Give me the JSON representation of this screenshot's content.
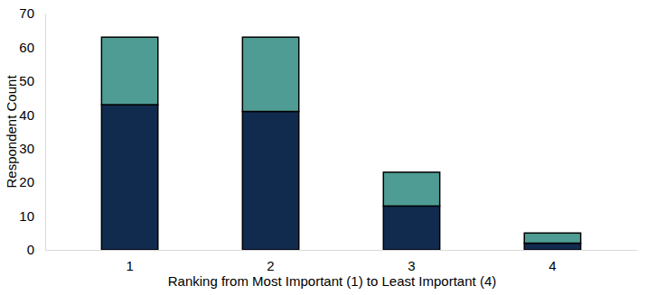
{
  "chart_data": {
    "type": "bar",
    "stacked": true,
    "x_label": "Ranking from Most Important (1) to Least Important (4)",
    "y_label": "Respondent Count",
    "categories": [
      "1",
      "2",
      "3",
      "4"
    ],
    "series": [
      {
        "color": "#112b4f",
        "values": [
          43,
          41,
          13,
          2
        ]
      },
      {
        "color": "#4f9c94",
        "values": [
          20,
          22,
          10,
          3
        ]
      }
    ],
    "ylim": [
      0,
      70
    ],
    "yticks": [
      0,
      10,
      20,
      30,
      40,
      50,
      60,
      70
    ],
    "grid": false
  }
}
